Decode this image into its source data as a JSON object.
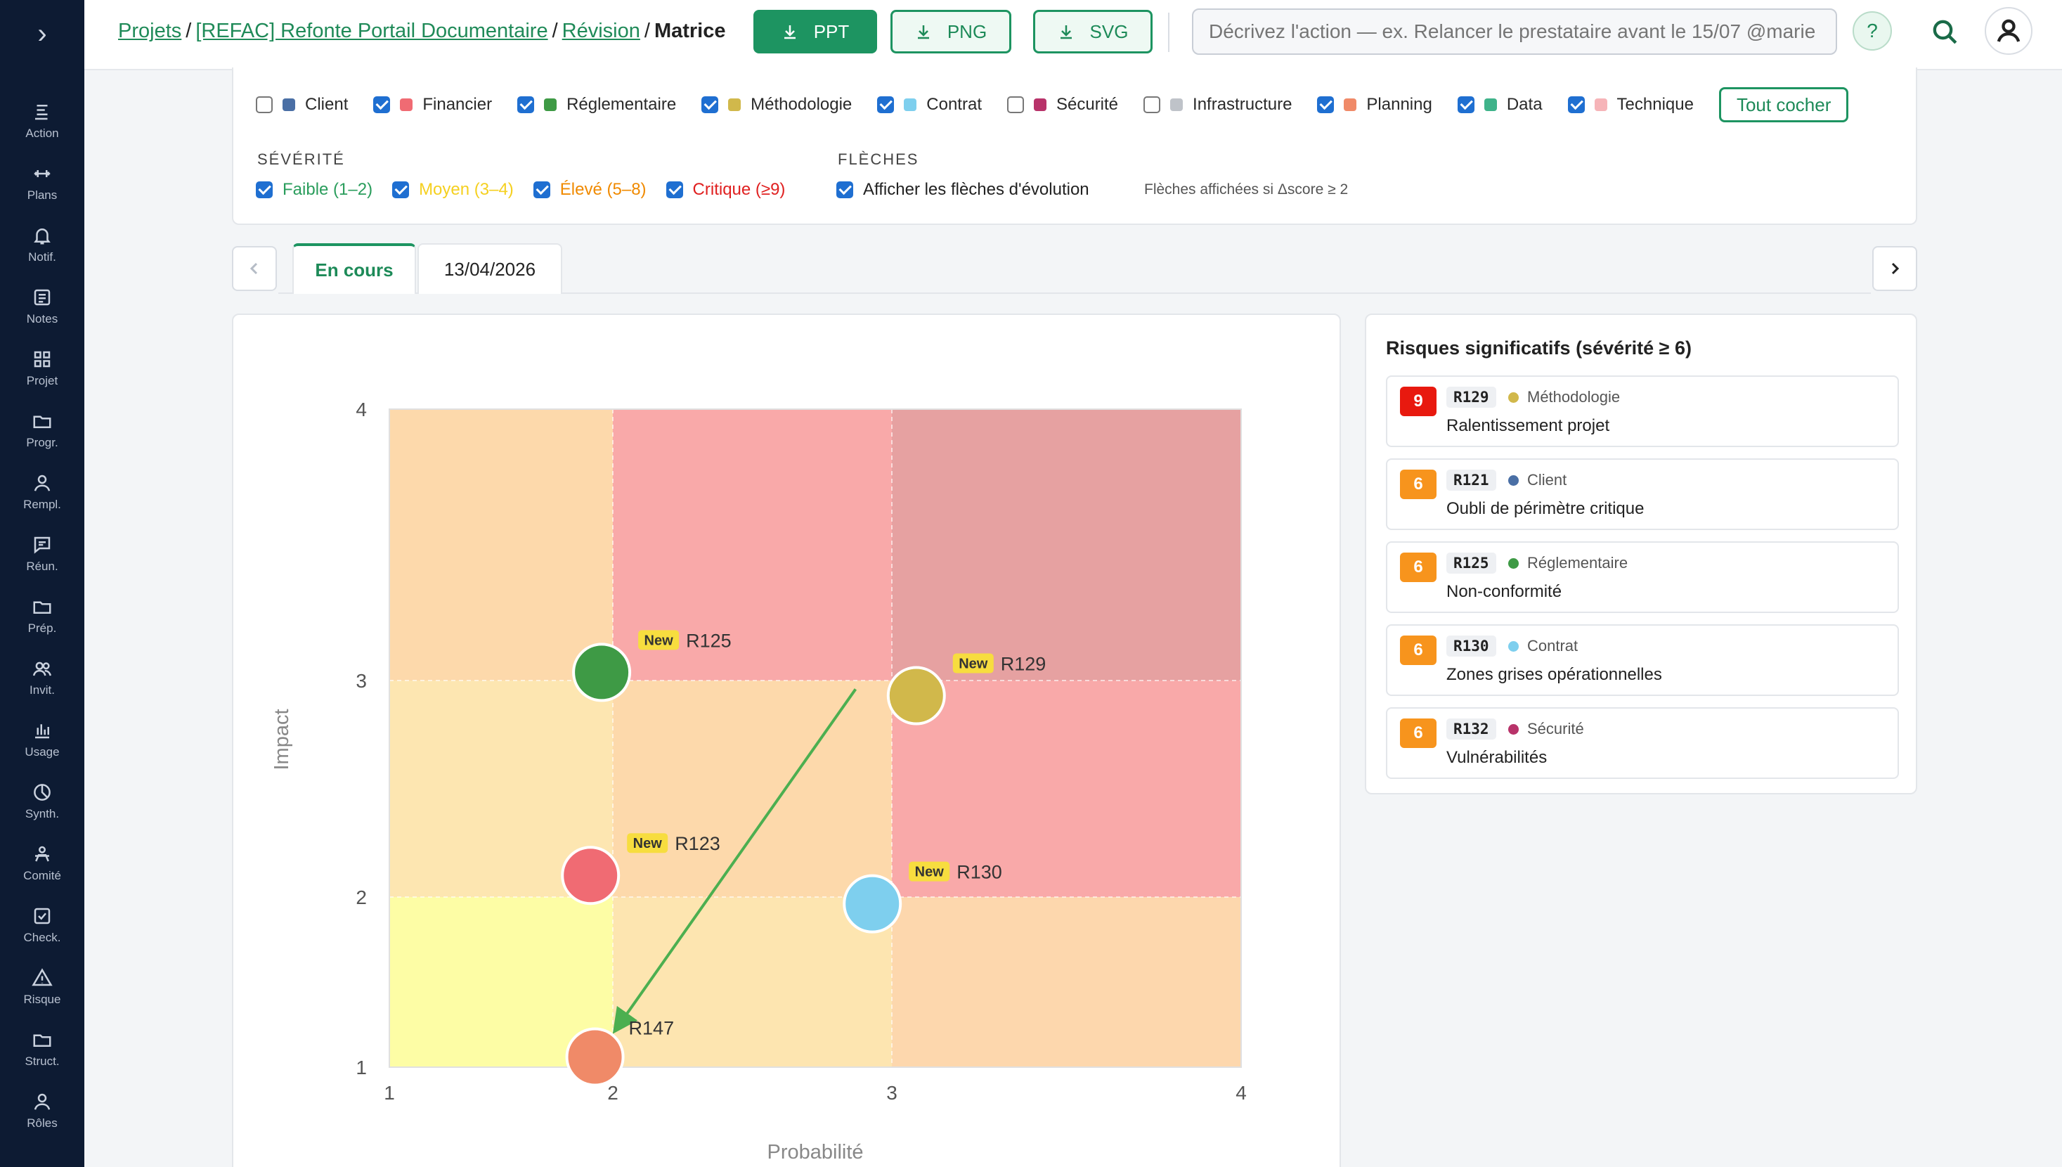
{
  "sidebar": {
    "toggle": "›",
    "items": [
      {
        "label": "Action",
        "icon": "action-icon"
      },
      {
        "label": "Plans",
        "icon": "plans-icon"
      },
      {
        "label": "Notif.",
        "icon": "bell-icon"
      },
      {
        "label": "Notes",
        "icon": "notes-icon"
      },
      {
        "label": "Projet",
        "icon": "grid-icon"
      },
      {
        "label": "Progr.",
        "icon": "folder-icon"
      },
      {
        "label": "Rempl.",
        "icon": "user-icon"
      },
      {
        "label": "Réun.",
        "icon": "chat-icon"
      },
      {
        "label": "Prép.",
        "icon": "folder-icon"
      },
      {
        "label": "Invit.",
        "icon": "users-icon"
      },
      {
        "label": "Usage",
        "icon": "bar-chart-icon"
      },
      {
        "label": "Synth.",
        "icon": "pie-icon"
      },
      {
        "label": "Comité",
        "icon": "committee-icon"
      },
      {
        "label": "Check.",
        "icon": "checkbox-icon"
      },
      {
        "label": "Risque",
        "icon": "warning-icon"
      },
      {
        "label": "Struct.",
        "icon": "folder-icon"
      },
      {
        "label": "Rôles",
        "icon": "user-icon"
      }
    ]
  },
  "topbar": {
    "breadcrumb": [
      {
        "label": "Projets",
        "link": true
      },
      {
        "label": "[REFAC] Refonte Portail Documentaire",
        "link": true
      },
      {
        "label": "Révision",
        "link": true
      },
      {
        "label": "Matrice",
        "link": false
      }
    ],
    "separator": "/",
    "export_ppt": "PPT",
    "export_png": "PNG",
    "export_svg": "SVG",
    "action_placeholder": "Décrivez l'action — ex. Relancer le prestataire avant le 15/07 @marie",
    "help": "?"
  },
  "filters": {
    "categories": [
      {
        "label": "Client",
        "checked": false,
        "color": "#4a6fa5"
      },
      {
        "label": "Financier",
        "checked": true,
        "color": "#f06b73"
      },
      {
        "label": "Réglementaire",
        "checked": true,
        "color": "#3e9a45"
      },
      {
        "label": "Méthodologie",
        "checked": true,
        "color": "#d1b84b"
      },
      {
        "label": "Contrat",
        "checked": true,
        "color": "#7ecfee"
      },
      {
        "label": "Sécurité",
        "checked": false,
        "color": "#b8336a"
      },
      {
        "label": "Infrastructure",
        "checked": false,
        "color": "#bfc3c9"
      },
      {
        "label": "Planning",
        "checked": true,
        "color": "#f08a68"
      },
      {
        "label": "Data",
        "checked": true,
        "color": "#3fb38a"
      },
      {
        "label": "Technique",
        "checked": true,
        "color": "#f6b4b8"
      }
    ],
    "check_all": "Tout cocher",
    "severity_title": "SÉVÉRITÉ",
    "severity": [
      {
        "label": "Faible (1–2)",
        "checked": true,
        "color": "#2a9d5c"
      },
      {
        "label": "Moyen (3–4)",
        "checked": true,
        "color": "#f5d020"
      },
      {
        "label": "Élevé (5–8)",
        "checked": true,
        "color": "#f08a00"
      },
      {
        "label": "Critique (≥9)",
        "checked": true,
        "color": "#e02020"
      }
    ],
    "arrows_title": "FLÈCHES",
    "arrows_label": "Afficher les flèches d'évolution",
    "arrows_checked": true,
    "arrows_note": "Flèches affichées si Δscore ≥ 2"
  },
  "tabs": [
    {
      "label": "En cours",
      "active": true
    },
    {
      "label": "13/04/2026",
      "active": false
    }
  ],
  "chart_data": {
    "type": "scatter",
    "xlabel": "Probabilité",
    "ylabel": "Impact",
    "xlim": [
      1,
      4
    ],
    "ylim": [
      1,
      4
    ],
    "x_ticks": [
      1,
      2,
      3,
      4
    ],
    "y_ticks": [
      1,
      2,
      3,
      4
    ],
    "zones": [
      {
        "x": [
          1,
          2
        ],
        "y": [
          1,
          2
        ],
        "color": "#fdfda5"
      },
      {
        "x": [
          2,
          3
        ],
        "y": [
          1,
          2
        ],
        "color": "#fde5b0"
      },
      {
        "x": [
          3,
          4
        ],
        "y": [
          1,
          2
        ],
        "color": "#fdd7ad"
      },
      {
        "x": [
          1,
          2
        ],
        "y": [
          2,
          3
        ],
        "color": "#fde6b1"
      },
      {
        "x": [
          2,
          3
        ],
        "y": [
          2,
          3
        ],
        "color": "#fdd9ab"
      },
      {
        "x": [
          3,
          4
        ],
        "y": [
          2,
          3
        ],
        "color": "#f9a9a9"
      },
      {
        "x": [
          1,
          2
        ],
        "y": [
          3,
          4
        ],
        "color": "#fdd9ab"
      },
      {
        "x": [
          2,
          3
        ],
        "y": [
          3,
          4
        ],
        "color": "#f9a9a9"
      },
      {
        "x": [
          3,
          4
        ],
        "y": [
          3,
          4
        ],
        "color": "#e6a1a1"
      }
    ],
    "points": [
      {
        "id": "R125",
        "x": 1.95,
        "y": 3.03,
        "color": "#3e9a45",
        "is_new": true
      },
      {
        "id": "R129",
        "x": 3.07,
        "y": 2.93,
        "color": "#d1b84b",
        "is_new": true
      },
      {
        "id": "R123",
        "x": 1.9,
        "y": 2.1,
        "color": "#f06b73",
        "is_new": true
      },
      {
        "id": "R130",
        "x": 2.93,
        "y": 1.96,
        "color": "#7ecfee",
        "is_new": true
      },
      {
        "id": "R147",
        "x": 1.92,
        "y": 1.06,
        "color": "#f08a68",
        "is_new": false
      }
    ],
    "arrows": [
      {
        "from": [
          2.87,
          2.96
        ],
        "to": [
          2.01,
          1.22
        ],
        "color": "#4caf50"
      }
    ],
    "new_badge": "New"
  },
  "significant": {
    "title": "Risques significatifs (sévérité ≥ 6)",
    "items": [
      {
        "score": "9",
        "score_color": "#e8190f",
        "id": "R129",
        "category": "Méthodologie",
        "cat_color": "#d1b84b",
        "name": "Ralentissement projet"
      },
      {
        "score": "6",
        "score_color": "#f7941d",
        "id": "R121",
        "category": "Client",
        "cat_color": "#4a6fa5",
        "name": "Oubli de périmètre critique"
      },
      {
        "score": "6",
        "score_color": "#f7941d",
        "id": "R125",
        "category": "Réglementaire",
        "cat_color": "#3e9a45",
        "name": "Non-conformité"
      },
      {
        "score": "6",
        "score_color": "#f7941d",
        "id": "R130",
        "category": "Contrat",
        "cat_color": "#7ecfee",
        "name": "Zones grises opérationnelles"
      },
      {
        "score": "6",
        "score_color": "#f7941d",
        "id": "R132",
        "category": "Sécurité",
        "cat_color": "#b8336a",
        "name": "Vulnérabilités"
      }
    ]
  }
}
